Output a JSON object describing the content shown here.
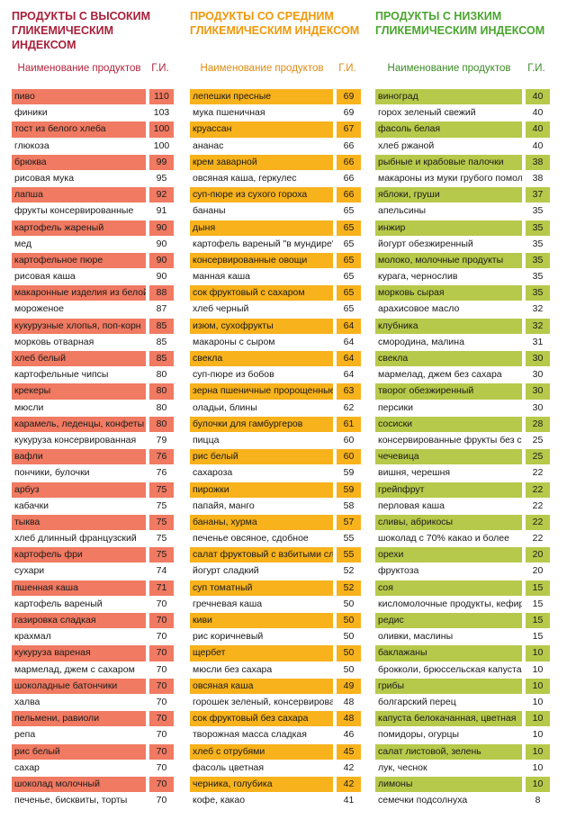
{
  "columns": [
    {
      "title": "ПРОДУКТЫ С ВЫСОКИМ\nГЛИКЕМИЧЕСКИМ ИНДЕКСОМ",
      "header_name": "Наименование продуктов",
      "header_gi": "Г.И.",
      "highlight_color": "#f07a62",
      "title_color": "#a8203a",
      "rows": [
        {
          "name": "пиво",
          "gi": "110"
        },
        {
          "name": "финики",
          "gi": "103"
        },
        {
          "name": "тост из белого хлеба",
          "gi": "100"
        },
        {
          "name": "глюкоза",
          "gi": "100"
        },
        {
          "name": "брюква",
          "gi": "99"
        },
        {
          "name": "рисовая мука",
          "gi": "95"
        },
        {
          "name": "лапша",
          "gi": "92"
        },
        {
          "name": "фрукты консервированные",
          "gi": "91"
        },
        {
          "name": "картофель жареный",
          "gi": "90"
        },
        {
          "name": "мед",
          "gi": "90"
        },
        {
          "name": "картофельное пюре",
          "gi": "90"
        },
        {
          "name": "рисовая каша",
          "gi": "90"
        },
        {
          "name": "макаронные изделия из белой му",
          "gi": "88"
        },
        {
          "name": "мороженое",
          "gi": "87"
        },
        {
          "name": "кукурузные хлопья, поп-корн",
          "gi": "85"
        },
        {
          "name": "морковь отварная",
          "gi": "85"
        },
        {
          "name": "хлеб белый",
          "gi": "85"
        },
        {
          "name": "картофельные чипсы",
          "gi": "80"
        },
        {
          "name": "крекеры",
          "gi": "80"
        },
        {
          "name": "мюсли",
          "gi": "80"
        },
        {
          "name": "карамель, леденцы, конфеты",
          "gi": "80"
        },
        {
          "name": "кукуруза консервированная",
          "gi": "79"
        },
        {
          "name": "вафли",
          "gi": "76"
        },
        {
          "name": "пончики, булочки",
          "gi": "76"
        },
        {
          "name": "арбуз",
          "gi": "75"
        },
        {
          "name": "кабачки",
          "gi": "75"
        },
        {
          "name": "тыква",
          "gi": "75"
        },
        {
          "name": "хлеб длинный французский",
          "gi": "75"
        },
        {
          "name": "картофель фри",
          "gi": "75"
        },
        {
          "name": "сухари",
          "gi": "74"
        },
        {
          "name": "пшенная каша",
          "gi": "71"
        },
        {
          "name": "картофель вареный",
          "gi": "70"
        },
        {
          "name": "газировка сладкая",
          "gi": "70"
        },
        {
          "name": "крахмал",
          "gi": "70"
        },
        {
          "name": "кукуруза вареная",
          "gi": "70"
        },
        {
          "name": "мармелад, джем с сахаром",
          "gi": "70"
        },
        {
          "name": "шоколадные батончики",
          "gi": "70"
        },
        {
          "name": "халва",
          "gi": "70"
        },
        {
          "name": "пельмени, равиоли",
          "gi": "70"
        },
        {
          "name": "репа",
          "gi": "70"
        },
        {
          "name": "рис белый",
          "gi": "70"
        },
        {
          "name": "сахар",
          "gi": "70"
        },
        {
          "name": "шоколад молочный",
          "gi": "70"
        },
        {
          "name": "печенье, бисквиты, торты",
          "gi": "70"
        }
      ]
    },
    {
      "title": "ПРОДУКТЫ СО СРЕДНИМ\nГЛИКЕМИЧЕСКИМ ИНДЕКСОМ",
      "header_name": "Наименование продуктов",
      "header_gi": "Г.И.",
      "highlight_color": "#f7b21c",
      "title_color": "#f0980a",
      "rows": [
        {
          "name": "лепешки пресные",
          "gi": "69"
        },
        {
          "name": "мука пшеничная",
          "gi": "69"
        },
        {
          "name": "круассан",
          "gi": "67"
        },
        {
          "name": "ананас",
          "gi": "66"
        },
        {
          "name": "крем заварной",
          "gi": "66"
        },
        {
          "name": "овсяная каша, геркулес",
          "gi": "66"
        },
        {
          "name": "суп-пюре из сухого гороха",
          "gi": "66"
        },
        {
          "name": "бананы",
          "gi": "65"
        },
        {
          "name": "дыня",
          "gi": "65"
        },
        {
          "name": "картофель вареный \"в мундире\"",
          "gi": "65"
        },
        {
          "name": "консервированные овощи",
          "gi": "65"
        },
        {
          "name": "манная каша",
          "gi": "65"
        },
        {
          "name": "сок фруктовый с сахаром",
          "gi": "65"
        },
        {
          "name": "хлеб черный",
          "gi": "65"
        },
        {
          "name": "изюм, сухофрукты",
          "gi": "64"
        },
        {
          "name": "макароны с сыром",
          "gi": "64"
        },
        {
          "name": "свекла",
          "gi": "64"
        },
        {
          "name": "суп-пюре из бобов",
          "gi": "64"
        },
        {
          "name": "зерна пшеничные пророщенные",
          "gi": "63"
        },
        {
          "name": "оладьи, блины",
          "gi": "62"
        },
        {
          "name": "булочки для гамбургеров",
          "gi": "61"
        },
        {
          "name": "пицца",
          "gi": "60"
        },
        {
          "name": "рис белый",
          "gi": "60"
        },
        {
          "name": "сахароза",
          "gi": "59"
        },
        {
          "name": "пирожки",
          "gi": "59"
        },
        {
          "name": "папайя, манго",
          "gi": "58"
        },
        {
          "name": "бананы, хурма",
          "gi": "57"
        },
        {
          "name": "печенье овсяное, сдобное",
          "gi": "55"
        },
        {
          "name": "салат фруктовый с взбитыми сливками",
          "gi": "55"
        },
        {
          "name": "йогурт сладкий",
          "gi": "52"
        },
        {
          "name": "суп томатный",
          "gi": "52"
        },
        {
          "name": "гречневая каша",
          "gi": "50"
        },
        {
          "name": "киви",
          "gi": "50"
        },
        {
          "name": "рис коричневый",
          "gi": "50"
        },
        {
          "name": "щербет",
          "gi": "50"
        },
        {
          "name": "мюсли без сахара",
          "gi": "50"
        },
        {
          "name": "овсяная каша",
          "gi": "49"
        },
        {
          "name": "горошек зеленый, консервированный",
          "gi": "48"
        },
        {
          "name": "сок фруктовый без сахара",
          "gi": "48"
        },
        {
          "name": "творожная масса сладкая",
          "gi": "46"
        },
        {
          "name": "хлеб с отрубями",
          "gi": "45"
        },
        {
          "name": "фасоль цветная",
          "gi": "42"
        },
        {
          "name": "черника, голубика",
          "gi": "42"
        },
        {
          "name": "кофе, какао",
          "gi": "41"
        }
      ]
    },
    {
      "title": "ПРОДУКТЫ С НИЗКИМ\nГЛИКЕМИЧЕСКИМ ИНДЕКСОМ",
      "header_name": "Наименование продуктов",
      "header_gi": "Г.И.",
      "highlight_color": "#b7c94a",
      "title_color": "#4aa52e",
      "rows": [
        {
          "name": "виноград",
          "gi": "40"
        },
        {
          "name": "горох зеленый свежий",
          "gi": "40"
        },
        {
          "name": "фасоль белая",
          "gi": "40"
        },
        {
          "name": "хлеб ржаной",
          "gi": "40"
        },
        {
          "name": "рыбные и крабовые палочки",
          "gi": "38"
        },
        {
          "name": "макароны из муки грубого помола",
          "gi": "38"
        },
        {
          "name": "яблоки, груши",
          "gi": "37"
        },
        {
          "name": "апельсины",
          "gi": "35"
        },
        {
          "name": "инжир",
          "gi": "35"
        },
        {
          "name": "йогурт обезжиренный",
          "gi": "35"
        },
        {
          "name": "молоко, молочные продукты",
          "gi": "35"
        },
        {
          "name": "курага, чернослив",
          "gi": "35"
        },
        {
          "name": "морковь сырая",
          "gi": "35"
        },
        {
          "name": "арахисовое масло",
          "gi": "32"
        },
        {
          "name": "клубника",
          "gi": "32"
        },
        {
          "name": "смородина, малина",
          "gi": "31"
        },
        {
          "name": "свекла",
          "gi": "30"
        },
        {
          "name": "мармелад, джем без сахара",
          "gi": "30"
        },
        {
          "name": "творог обезжиренный",
          "gi": "30"
        },
        {
          "name": "персики",
          "gi": "30"
        },
        {
          "name": "сосиски",
          "gi": "28"
        },
        {
          "name": "консервированные фрукты без сахара",
          "gi": "25"
        },
        {
          "name": "чечевица",
          "gi": "25"
        },
        {
          "name": "вишня, черешня",
          "gi": "22"
        },
        {
          "name": "грейпфрут",
          "gi": "22"
        },
        {
          "name": "перловая каша",
          "gi": "22"
        },
        {
          "name": "сливы, абрикосы",
          "gi": "22"
        },
        {
          "name": "шоколад с 70% какао и более",
          "gi": "22"
        },
        {
          "name": "орехи",
          "gi": "20"
        },
        {
          "name": "фруктоза",
          "gi": "20"
        },
        {
          "name": "соя",
          "gi": "15"
        },
        {
          "name": "кисломолочные продукты, кефир",
          "gi": "15"
        },
        {
          "name": "редис",
          "gi": "15"
        },
        {
          "name": "оливки, маслины",
          "gi": "15"
        },
        {
          "name": "баклажаны",
          "gi": "10"
        },
        {
          "name": "брокколи, брюссельская капуста",
          "gi": "10"
        },
        {
          "name": "грибы",
          "gi": "10"
        },
        {
          "name": "болгарский перец",
          "gi": "10"
        },
        {
          "name": "капуста белокачанная, цветная",
          "gi": "10"
        },
        {
          "name": "помидоры, огурцы",
          "gi": "10"
        },
        {
          "name": "салат листовой, зелень",
          "gi": "10"
        },
        {
          "name": "лук, чеснок",
          "gi": "10"
        },
        {
          "name": "лимоны",
          "gi": "10"
        },
        {
          "name": "семечки подсолнуха",
          "gi": "8"
        }
      ]
    }
  ]
}
